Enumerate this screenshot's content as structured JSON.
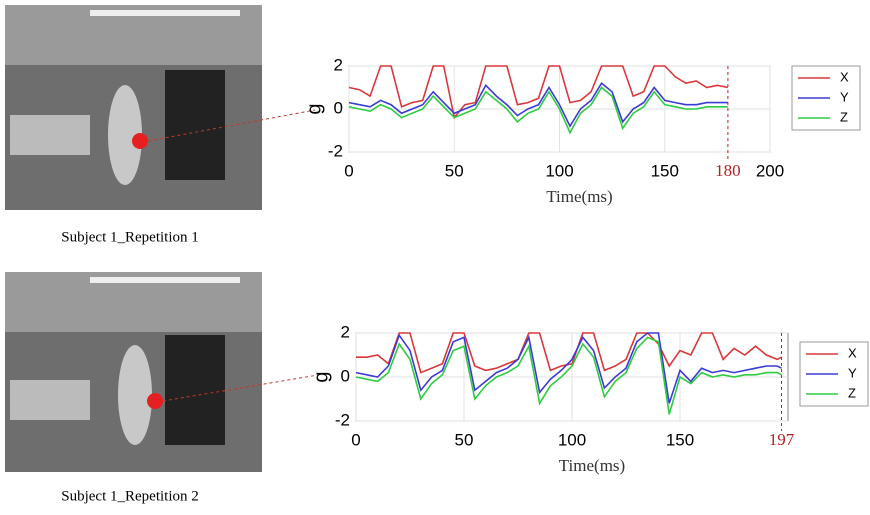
{
  "panels": [
    {
      "caption": "Subject 1_Repetition 1"
    },
    {
      "caption": "Subject 1_Repetition 2"
    }
  ],
  "chart_data": [
    {
      "type": "line",
      "xlabel": "Time(ms)",
      "ylabel": "g",
      "x": [
        0,
        5,
        10,
        15,
        20,
        25,
        30,
        35,
        40,
        45,
        50,
        55,
        60,
        65,
        70,
        75,
        80,
        85,
        90,
        95,
        100,
        105,
        110,
        115,
        120,
        125,
        130,
        135,
        140,
        145,
        150,
        155,
        160,
        165,
        170,
        175,
        180
      ],
      "series": [
        {
          "name": "X",
          "color": "#d9383a",
          "values": [
            1,
            0.9,
            0.6,
            2,
            2,
            0.1,
            0.3,
            0.4,
            2,
            2,
            -0.4,
            0.2,
            0.3,
            2,
            2,
            2,
            0.2,
            0.3,
            0.5,
            2,
            2,
            0.3,
            0.4,
            0.8,
            2,
            2,
            2,
            0.6,
            0.8,
            2,
            2,
            1.5,
            1.2,
            1.3,
            1.0,
            1.1,
            1.0
          ]
        },
        {
          "name": "Y",
          "color": "#3b3bd6",
          "values": [
            0.3,
            0.2,
            0.1,
            0.4,
            0.2,
            -0.2,
            0,
            0.2,
            0.8,
            0.3,
            -0.2,
            0,
            0.2,
            1.1,
            0.6,
            0.2,
            -0.3,
            0,
            0.2,
            1,
            0.2,
            -0.8,
            0,
            0.4,
            1.2,
            0.8,
            -0.6,
            0,
            0.3,
            1,
            0.4,
            0.3,
            0.2,
            0.2,
            0.3,
            0.3,
            0.3
          ]
        },
        {
          "name": "Z",
          "color": "#2ecc40",
          "values": [
            0.1,
            0,
            -0.1,
            0.2,
            0,
            -0.4,
            -0.2,
            0,
            0.6,
            0.1,
            -0.4,
            -0.2,
            0,
            0.8,
            0.4,
            0,
            -0.6,
            -0.2,
            0,
            0.8,
            0,
            -1.1,
            -0.2,
            0.2,
            1.0,
            0.6,
            -0.9,
            -0.2,
            0.1,
            0.8,
            0.2,
            0.1,
            0,
            0,
            0.1,
            0.1,
            0.1
          ]
        }
      ],
      "xlim": [
        0,
        200
      ],
      "xticks": [
        0,
        50,
        100,
        150,
        200
      ],
      "ylim": [
        -2,
        2
      ],
      "yticks": [
        -2,
        0,
        2
      ],
      "grid": true,
      "legend": "right",
      "markers": [
        180
      ],
      "marker_color": "#b22222"
    },
    {
      "type": "line",
      "xlabel": "Time(ms)",
      "ylabel": "g",
      "x": [
        0,
        5,
        10,
        15,
        20,
        25,
        30,
        35,
        40,
        45,
        50,
        55,
        60,
        65,
        70,
        75,
        80,
        85,
        90,
        95,
        100,
        105,
        110,
        115,
        120,
        125,
        130,
        135,
        140,
        145,
        150,
        155,
        160,
        165,
        170,
        175,
        180,
        185,
        190,
        195,
        197
      ],
      "series": [
        {
          "name": "X",
          "color": "#d9383a",
          "values": [
            0.9,
            0.9,
            1.0,
            0.6,
            2,
            2,
            0.2,
            0.4,
            0.6,
            2,
            2,
            0.5,
            0.3,
            0.4,
            0.6,
            0.8,
            2,
            2,
            0.3,
            0.5,
            0.6,
            2,
            2,
            0.3,
            0.5,
            0.8,
            2,
            2,
            1.5,
            0.5,
            1.2,
            1.0,
            2,
            2,
            0.8,
            1.3,
            1.0,
            1.4,
            1.0,
            0.8,
            0.9
          ]
        },
        {
          "name": "Y",
          "color": "#3b3bd6",
          "values": [
            0.2,
            0.1,
            0.0,
            0.5,
            1.9,
            1.2,
            -0.6,
            0,
            0.3,
            1.6,
            1.8,
            -0.6,
            -0.2,
            0.2,
            0.4,
            0.8,
            1.8,
            -0.7,
            -0.1,
            0.3,
            0.8,
            1.8,
            1.2,
            -0.5,
            0,
            0.4,
            1.6,
            2,
            2,
            -1.2,
            0.3,
            -0.2,
            0.4,
            0.2,
            0.3,
            0.2,
            0.3,
            0.4,
            0.5,
            0.5,
            0.4
          ]
        },
        {
          "name": "Z",
          "color": "#2ecc40",
          "values": [
            0,
            -0.1,
            -0.2,
            0.2,
            1.5,
            0.8,
            -1.0,
            -0.3,
            0.1,
            1.2,
            1.4,
            -1.0,
            -0.4,
            0,
            0.2,
            0.5,
            1.4,
            -1.2,
            -0.4,
            0,
            0.5,
            1.5,
            0.9,
            -0.9,
            -0.2,
            0.2,
            1.3,
            1.8,
            1.6,
            -1.7,
            0,
            -0.3,
            0.2,
            0,
            0.1,
            0,
            0.1,
            0.1,
            0.2,
            0.2,
            0.1
          ]
        }
      ],
      "xlim": [
        0,
        200
      ],
      "xticks": [
        0,
        50,
        100,
        150
      ],
      "ylim": [
        -2,
        2
      ],
      "yticks": [
        -2,
        0,
        2
      ],
      "grid": true,
      "legend": "right",
      "markers": [
        197
      ],
      "marker_color": "#b22222"
    }
  ]
}
